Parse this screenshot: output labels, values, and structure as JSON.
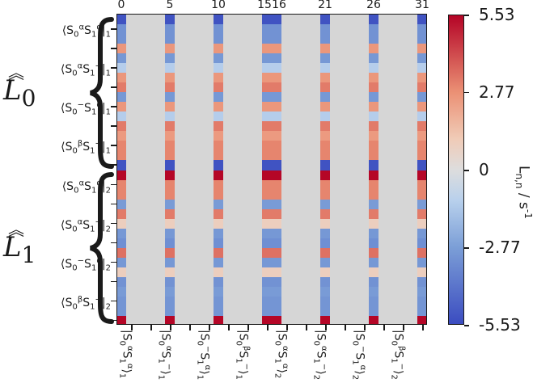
{
  "chart_data": {
    "type": "heatmap",
    "title": "",
    "rows": 32,
    "cols": 32,
    "top_tick_labels": [
      {
        "col": 0,
        "label": "0"
      },
      {
        "col": 5,
        "label": "5"
      },
      {
        "col": 10,
        "label": "10"
      },
      {
        "col": 15,
        "label": "15"
      },
      {
        "col": 16,
        "label": "16"
      },
      {
        "col": 21,
        "label": "21"
      },
      {
        "col": 26,
        "label": "26"
      },
      {
        "col": 31,
        "label": "31"
      }
    ],
    "nonzero_columns": [
      0,
      5,
      10,
      15,
      16,
      21,
      26,
      31
    ],
    "zero_fill_color": "#d6d6d6",
    "column_values": [
      -5.3,
      -3.2,
      -3.2,
      2.6,
      -3.0,
      -1.2,
      2.6,
      3.2,
      -3.0,
      2.6,
      -1.2,
      3.2,
      2.5,
      3.0,
      3.0,
      -5.3,
      5.5,
      3.0,
      3.0,
      -2.9,
      3.2,
      0.9,
      -3.0,
      -3.3,
      3.4,
      -3.0,
      0.9,
      -3.2,
      -2.9,
      -3.1,
      -3.1,
      5.5
    ],
    "row_labels": [
      {
        "row": 1.5,
        "ket": "S0αS1α",
        "html": "⟨S<sub>0</sub><sup>α</sup>S<sub>1</sub><sup>α</sup>|<sub>1</sub>"
      },
      {
        "row": 5.5,
        "ket": "S0αS1−",
        "html": "⟨S<sub>0</sub><sup>α</sup>S<sub>1</sub><sup>−</sup>|<sub>1</sub>"
      },
      {
        "row": 9.5,
        "ket": "S0−S1α",
        "html": "⟨S<sub>0</sub><sup>−</sup>S<sub>1</sub><sup>α</sup>|<sub>1</sub>"
      },
      {
        "row": 13.5,
        "ket": "S0βS1−",
        "html": "⟨S<sub>0</sub><sup>β</sup>S<sub>1</sub><sup>−</sup>|<sub>1</sub>"
      },
      {
        "row": 17.5,
        "ket": "S0αS1α",
        "html": "⟨S<sub>0</sub><sup>α</sup>S<sub>1</sub><sup>α</sup>|<sub>2</sub>"
      },
      {
        "row": 21.5,
        "ket": "S0αS1−",
        "html": "⟨S<sub>0</sub><sup>α</sup>S<sub>1</sub><sup>−</sup>|<sub>2</sub>"
      },
      {
        "row": 25.5,
        "ket": "S0−S1α",
        "html": "⟨S<sub>0</sub><sup>−</sup>S<sub>1</sub><sup>α</sup>|<sub>2</sub>"
      },
      {
        "row": 29.5,
        "ket": "S0βS1−",
        "html": "⟨S<sub>0</sub><sup>β</sup>S<sub>1</sub><sup>−</sup>|<sub>2</sub>"
      }
    ],
    "col_labels": [
      {
        "col": 1,
        "html": "|S<sub>0</sub><sup>α</sup>S<sub>1</sub><sup>α</sup>⟩<sub>1</sub>"
      },
      {
        "col": 5,
        "html": "|S<sub>0</sub><sup>α</sup>S<sub>1</sub><sup>−</sup>⟩<sub>1</sub>"
      },
      {
        "col": 9,
        "html": "|S<sub>0</sub><sup>−</sup>S<sub>1</sub><sup>α</sup>⟩<sub>1</sub>"
      },
      {
        "col": 13,
        "html": "|S<sub>0</sub><sup>β</sup>S<sub>1</sub><sup>−</sup>⟩<sub>1</sub>"
      },
      {
        "col": 17,
        "html": "|S<sub>0</sub><sup>α</sup>S<sub>1</sub><sup>α</sup>⟩<sub>2</sub>"
      },
      {
        "col": 21,
        "html": "|S<sub>0</sub><sup>α</sup>S<sub>1</sub><sup>−</sup>⟩<sub>2</sub>"
      },
      {
        "col": 25,
        "html": "|S<sub>0</sub><sup>−</sup>S<sub>1</sub><sup>α</sup>⟩<sub>2</sub>"
      },
      {
        "col": 29,
        "html": "|S<sub>0</sub><sup>β</sup>S<sub>1</sub><sup>−</sup>⟩<sub>2</sub>"
      }
    ],
    "colorbar": {
      "min": -5.53,
      "max": 5.53,
      "ticks": [
        5.53,
        2.77,
        0,
        -2.77,
        -5.53
      ],
      "tick_labels": [
        "5.53",
        "2.77",
        "0",
        "-2.77",
        "-5.53"
      ],
      "colormap": "coolwarm",
      "title_html": "L<sub>n,n</sub> / s<sup>-1</sup>"
    },
    "operator_groups": [
      {
        "label": "L",
        "subscript": "0",
        "rows": [
          0,
          15
        ]
      },
      {
        "label": "L",
        "subscript": "1",
        "rows": [
          16,
          31
        ]
      }
    ],
    "legend_position": "right"
  }
}
